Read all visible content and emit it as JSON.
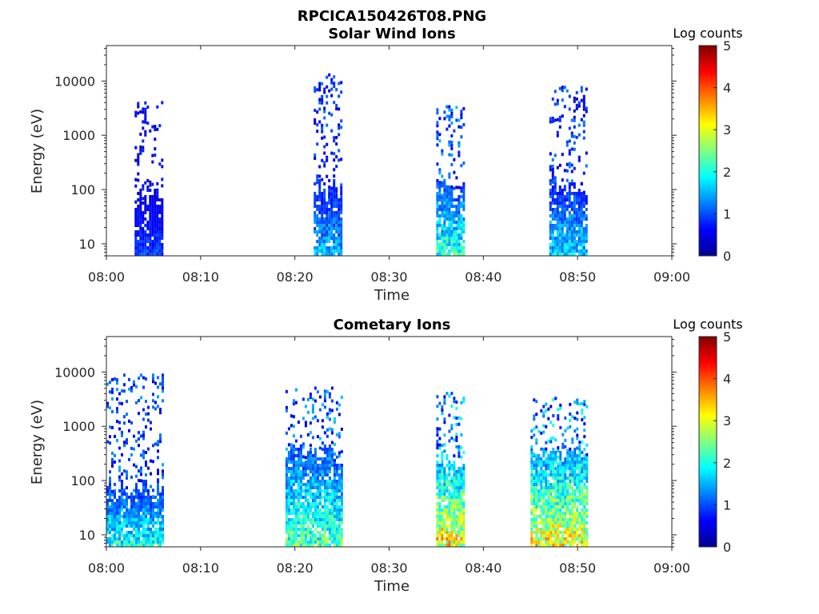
{
  "figure_title": "RPCICA150426T08.PNG",
  "colors": {
    "colormap": [
      "#00008f",
      "#0000ff",
      "#0080ff",
      "#00ffff",
      "#80ff80",
      "#ffff00",
      "#ff8000",
      "#ff0000",
      "#800000"
    ],
    "axis": "#262626"
  },
  "chart_data": [
    {
      "type": "heatmap",
      "title": "Solar Wind Ions",
      "xlabel": "Time",
      "ylabel": "Energy (eV)",
      "x_range": [
        "08:00",
        "09:00"
      ],
      "x_ticks": [
        "08:00",
        "08:10",
        "08:20",
        "08:30",
        "08:40",
        "08:50",
        "09:00"
      ],
      "y_scale": "log",
      "y_range": [
        6,
        45000
      ],
      "y_ticks": [
        10,
        100,
        1000,
        10000
      ],
      "y_tick_labels": [
        "10",
        "100",
        "1000",
        "10000"
      ],
      "colorbar": {
        "label": "Log counts",
        "range": [
          0,
          5
        ],
        "ticks": [
          "0",
          "1",
          "2",
          "3",
          "4",
          "5"
        ]
      },
      "bursts": [
        {
          "start": "08:03",
          "end": "08:06",
          "low_energy_top_eV": 80,
          "max_log_counts": 1.2,
          "sparse_high_energy_up_to_eV": 4500
        },
        {
          "start": "08:22",
          "end": "08:25",
          "low_energy_top_eV": 120,
          "max_log_counts": 2.0,
          "sparse_high_energy_up_to_eV": 14000
        },
        {
          "start": "08:35",
          "end": "08:38",
          "low_energy_top_eV": 120,
          "max_log_counts": 2.8,
          "sparse_high_energy_up_to_eV": 4000
        },
        {
          "start": "08:47",
          "end": "08:51",
          "low_energy_top_eV": 120,
          "max_log_counts": 2.2,
          "sparse_high_energy_up_to_eV": 8500
        }
      ]
    },
    {
      "type": "heatmap",
      "title": "Cometary Ions",
      "xlabel": "Time",
      "ylabel": "Energy (eV)",
      "x_range": [
        "08:00",
        "09:00"
      ],
      "x_ticks": [
        "08:00",
        "08:10",
        "08:20",
        "08:30",
        "08:40",
        "08:50",
        "09:00"
      ],
      "y_scale": "log",
      "y_range": [
        6,
        45000
      ],
      "y_ticks": [
        10,
        100,
        1000,
        10000
      ],
      "y_tick_labels": [
        "10",
        "100",
        "1000",
        "10000"
      ],
      "colorbar": {
        "label": "Log counts",
        "range": [
          0,
          5
        ],
        "ticks": [
          "0",
          "1",
          "2",
          "3",
          "4",
          "5"
        ]
      },
      "bursts": [
        {
          "start": "08:00",
          "end": "08:06",
          "low_energy_top_eV": 80,
          "max_log_counts": 2.6,
          "sparse_high_energy_up_to_eV": 9500
        },
        {
          "start": "08:19",
          "end": "08:25",
          "low_energy_top_eV": 350,
          "max_log_counts": 3.0,
          "sparse_high_energy_up_to_eV": 5500
        },
        {
          "start": "08:35",
          "end": "08:38",
          "low_energy_top_eV": 300,
          "max_log_counts": 4.2,
          "sparse_high_energy_up_to_eV": 5000
        },
        {
          "start": "08:45",
          "end": "08:51",
          "low_energy_top_eV": 350,
          "max_log_counts": 4.0,
          "sparse_high_energy_up_to_eV": 3500
        }
      ]
    }
  ]
}
